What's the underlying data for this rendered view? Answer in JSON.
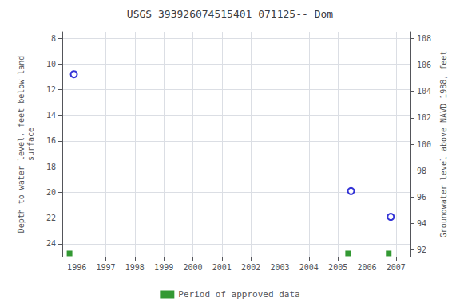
{
  "chart_data": {
    "type": "scatter",
    "title": "USGS 393926074515401 071125-- Dom",
    "xlabel_left": null,
    "ylabel": "Depth to water level, feet below land\nsurface",
    "y2label": "Groundwater level above NAVD 1988, feet",
    "series": [
      {
        "color": "#0000cc",
        "marker": "open_circle",
        "x": [
          1995.9,
          2005.45,
          2006.82
        ],
        "values": [
          10.8,
          19.9,
          21.9
        ]
      },
      {
        "name": "Period of approved data",
        "color": "#008000",
        "marker": "square",
        "x": [
          1995.75,
          2005.35,
          2006.75
        ],
        "values": [
          24.75,
          24.75,
          24.75
        ]
      }
    ],
    "xlim": [
      1995.5,
      2007.5
    ],
    "xticks": [
      1996,
      1997,
      1998,
      1999,
      2000,
      2001,
      2002,
      2003,
      2004,
      2005,
      2006,
      2007
    ],
    "ylim": [
      25.0,
      7.5
    ],
    "yticks": [
      8,
      10,
      12,
      14,
      16,
      18,
      20,
      22,
      24
    ],
    "y2lim": [
      91.5,
      108.5
    ],
    "y2ticks": [
      108,
      106,
      104,
      102,
      100,
      98,
      96,
      94,
      92
    ],
    "grid": true,
    "legend": "bottom"
  }
}
